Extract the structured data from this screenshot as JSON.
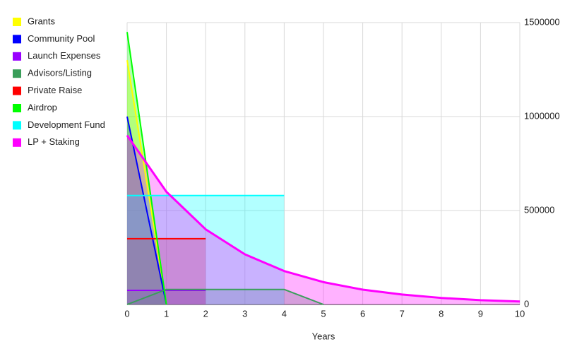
{
  "chart_data": {
    "type": "area",
    "x_label": "Years",
    "x": [
      0,
      1,
      2,
      3,
      4,
      5,
      6,
      7,
      8,
      9,
      10
    ],
    "xlim": [
      0,
      10
    ],
    "xticks": [
      0,
      1,
      2,
      3,
      4,
      5,
      6,
      7,
      8,
      9,
      10
    ],
    "ylim": [
      0,
      1500000
    ],
    "yticks": [
      0,
      500000,
      1000000,
      1500000
    ],
    "y_axis_side": "right",
    "grid": true,
    "legend_position": "top-left",
    "series": [
      {
        "name": "Grants",
        "color": "#ffff00",
        "values": [
          1300000,
          0,
          null,
          null,
          null,
          null,
          null,
          null,
          null,
          null,
          null
        ]
      },
      {
        "name": "Community Pool",
        "color": "#0000ff",
        "values": [
          1000000,
          0,
          null,
          null,
          null,
          null,
          null,
          null,
          null,
          null,
          null
        ]
      },
      {
        "name": "Launch Expenses",
        "color": "#9900ff",
        "values": [
          75000,
          75000,
          75000,
          null,
          null,
          null,
          null,
          null,
          null,
          null,
          null
        ]
      },
      {
        "name": "Advisors/Listing",
        "color": "#3a9e5a",
        "values": [
          0,
          80000,
          80000,
          80000,
          80000,
          0,
          null,
          null,
          null,
          null,
          null
        ]
      },
      {
        "name": "Private Raise",
        "color": "#ff0000",
        "values": [
          350000,
          350000,
          350000,
          null,
          null,
          null,
          null,
          null,
          null,
          null,
          null
        ]
      },
      {
        "name": "Airdrop",
        "color": "#00ff00",
        "values": [
          1450000,
          0,
          null,
          null,
          null,
          null,
          null,
          null,
          null,
          null,
          null
        ]
      },
      {
        "name": "Development Fund",
        "color": "#00ffff",
        "values": [
          580000,
          580000,
          580000,
          580000,
          580000,
          null,
          null,
          null,
          null,
          null,
          null
        ]
      },
      {
        "name": "LP + Staking",
        "color": "#ff00ff",
        "values": [
          900000,
          600000,
          400000,
          267000,
          178000,
          119000,
          79000,
          53000,
          35000,
          23000,
          16000
        ]
      }
    ]
  }
}
